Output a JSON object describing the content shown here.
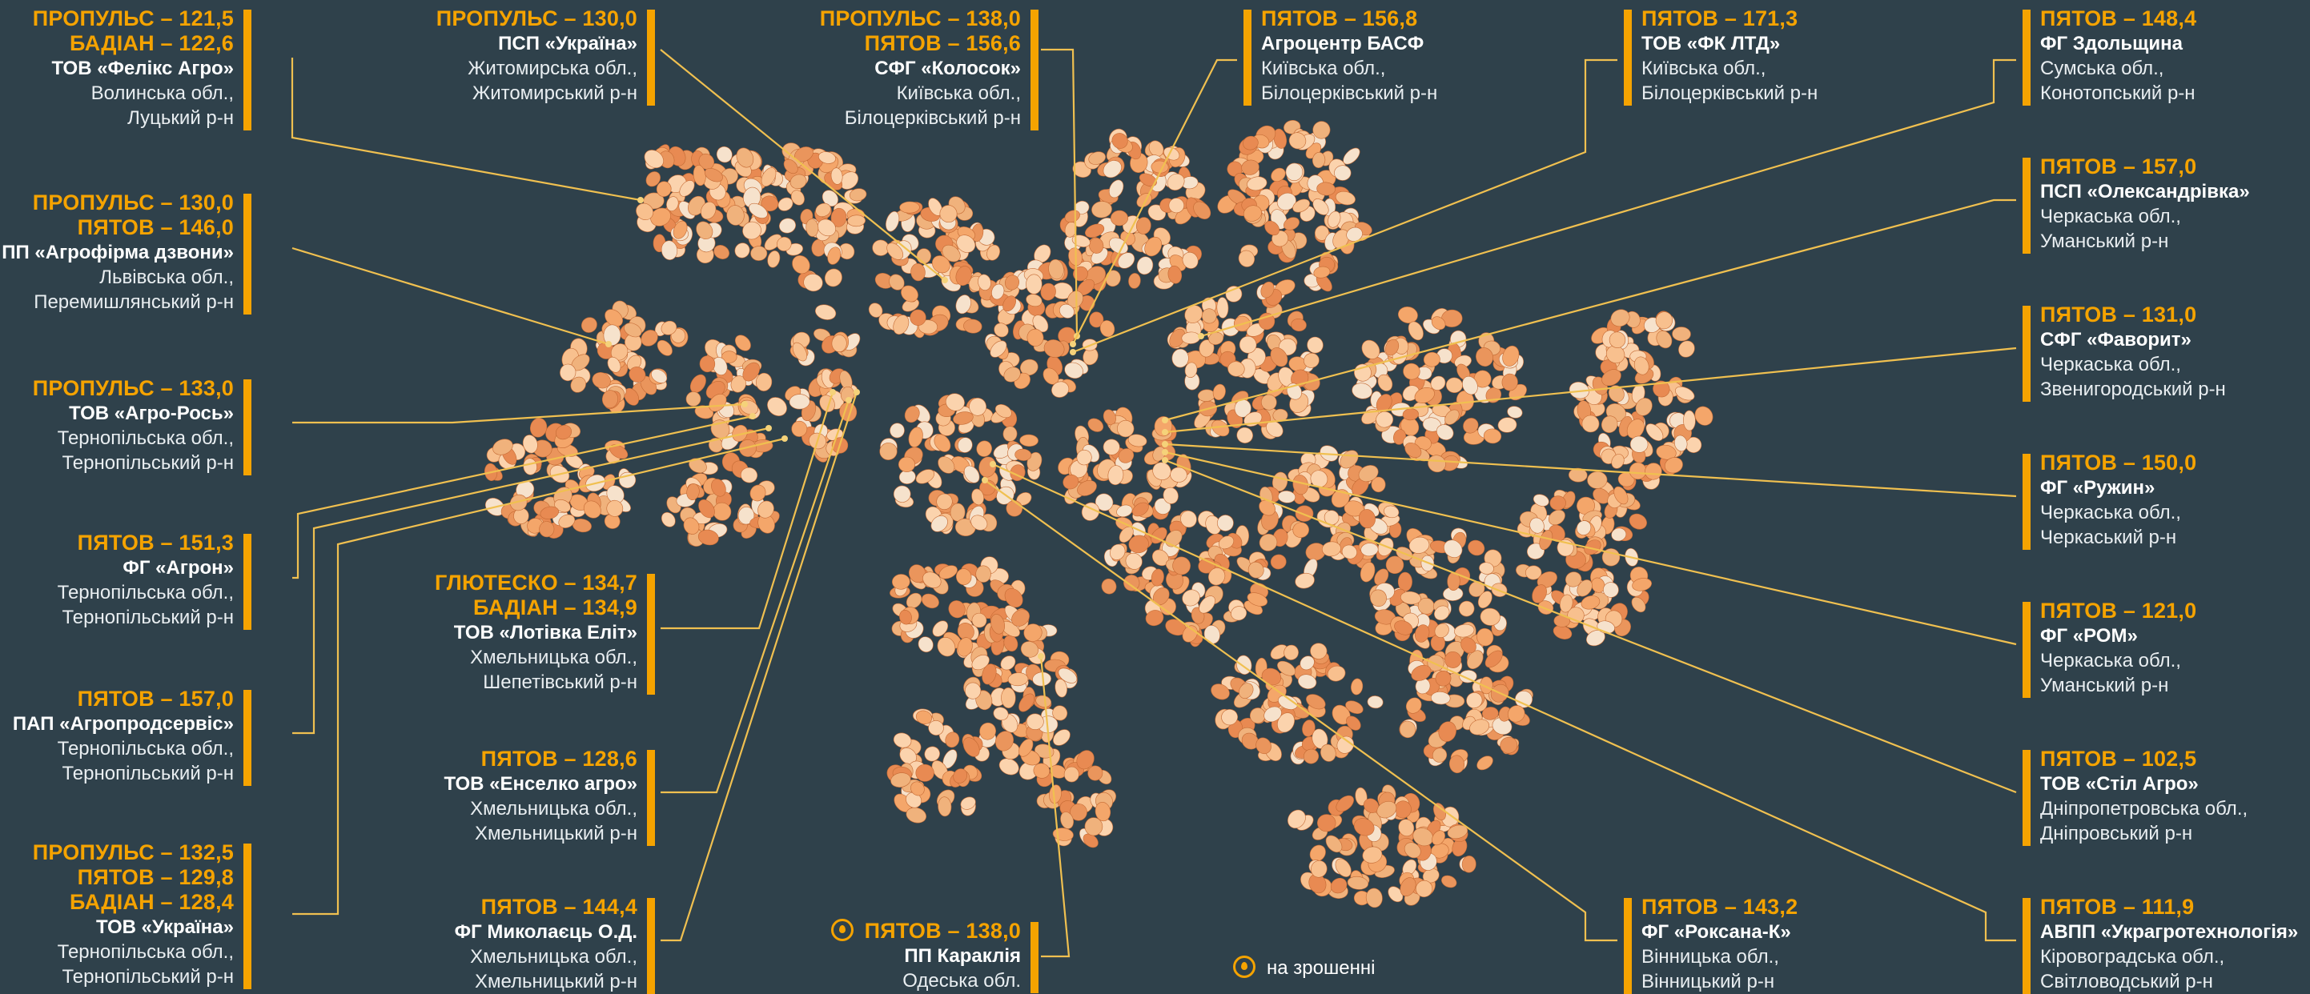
{
  "colors": {
    "background": "#2f414b",
    "accent": "#f5a300",
    "kernel": "#f4a66a",
    "text": "#ffffff"
  },
  "icons": {
    "irrigation": "water-drop-icon"
  },
  "legend": {
    "label": "на зрошенні"
  },
  "cards": [
    {
      "id": "c1",
      "side": "left",
      "yields": [
        "ПРОПУЛЬС – 121,5",
        "БАДІАН – 122,6"
      ],
      "farm": "ТОВ «Фелікс Агро»",
      "lines": [
        "Волинська обл.,",
        "Луцький р-н"
      ]
    },
    {
      "id": "c2",
      "side": "left",
      "yields": [
        "ПРОПУЛЬС – 130,0",
        "ПЯТОВ – 146,0"
      ],
      "farm": "ПП «Агрофірма дзвони»",
      "lines": [
        "Львівська обл.,",
        "Перемишлянський р-н"
      ]
    },
    {
      "id": "c3",
      "side": "left",
      "yields": [
        "ПРОПУЛЬС – 133,0"
      ],
      "farm": "ТОВ «Агро-Рось»",
      "lines": [
        "Тернопільська обл.,",
        "Тернопільський р-н"
      ]
    },
    {
      "id": "c4",
      "side": "left",
      "yields": [
        "ПЯТОВ – 151,3"
      ],
      "farm": "ФГ «Агрон»",
      "lines": [
        "Тернопільська обл.,",
        "Тернопільський р-н"
      ]
    },
    {
      "id": "c5",
      "side": "left",
      "yields": [
        "ПЯТОВ – 157,0"
      ],
      "farm": "ПАП «Агропродсервіс»",
      "lines": [
        "Тернопільська обл.,",
        "Тернопільський р-н"
      ]
    },
    {
      "id": "c6",
      "side": "left",
      "yields": [
        "ПРОПУЛЬС – 132,5",
        "ПЯТОВ – 129,8",
        "БАДІАН – 128,4"
      ],
      "farm": "ТОВ «Україна»",
      "lines": [
        "Тернопільська обл.,",
        "Тернопільський р-н"
      ]
    },
    {
      "id": "c7",
      "side": "left",
      "yields": [
        "ПРОПУЛЬС – 130,0"
      ],
      "farm": "ПСП «Україна»",
      "lines": [
        "Житомирська обл.,",
        "Житомирський р-н"
      ]
    },
    {
      "id": "c8",
      "side": "left",
      "yields": [
        "ГЛЮТЕСКО – 134,7",
        "БАДІАН – 134,9"
      ],
      "farm": "ТОВ «Лотівка Еліт»",
      "lines": [
        "Хмельницька обл.,",
        "Шепетівський р-н"
      ]
    },
    {
      "id": "c9",
      "side": "left",
      "yields": [
        "ПЯТОВ – 128,6"
      ],
      "farm": "ТОВ «Енселко агро»",
      "lines": [
        "Хмельницька обл.,",
        "Хмельницький р-н"
      ]
    },
    {
      "id": "c10",
      "side": "left",
      "yields": [
        "ПЯТОВ – 144,4"
      ],
      "farm": "ФГ Миколаєць О.Д.",
      "lines": [
        "Хмельницька обл.,",
        "Хмельницький р-н"
      ]
    },
    {
      "id": "c11",
      "side": "left",
      "yields": [
        "ПРОПУЛЬС – 138,0",
        "ПЯТОВ – 156,6"
      ],
      "farm": "СФГ «Колосок»",
      "lines": [
        "Київська обл.,",
        "Білоцерківський р-н"
      ]
    },
    {
      "id": "c12",
      "side": "left",
      "irrigated": true,
      "yields": [
        "ПЯТОВ – 138,0"
      ],
      "farm": "ПП Караклія",
      "lines": [
        "Одеська обл."
      ]
    },
    {
      "id": "c13",
      "side": "right",
      "yields": [
        "ПЯТОВ – 156,8"
      ],
      "farm": "Агроцентр БАСФ",
      "lines": [
        "Київська обл.,",
        "Білоцерківський р-н"
      ]
    },
    {
      "id": "c14",
      "side": "right",
      "yields": [
        "ПЯТОВ – 171,3"
      ],
      "farm": "ТОВ «ФК ЛТД»",
      "lines": [
        "Київська обл.,",
        "Білоцерківський р-н"
      ]
    },
    {
      "id": "c15",
      "side": "right",
      "yields": [
        "ПЯТОВ – 143,2"
      ],
      "farm": "ФГ «Роксана-К»",
      "lines": [
        "Вінницька обл.,",
        "Вінницький р-н"
      ]
    },
    {
      "id": "c16",
      "side": "right",
      "yields": [
        "ПЯТОВ – 148,4"
      ],
      "farm": "ФГ Здольщина",
      "lines": [
        "Сумська обл.,",
        "Конотопський р-н"
      ]
    },
    {
      "id": "c17",
      "side": "right",
      "yields": [
        "ПЯТОВ – 157,0"
      ],
      "farm": "ПСП «Олександрівка»",
      "lines": [
        "Черкаська обл.,",
        "Уманський р-н"
      ]
    },
    {
      "id": "c18",
      "side": "right",
      "yields": [
        "ПЯТОВ – 131,0"
      ],
      "farm": "СФГ «Фаворит»",
      "lines": [
        "Черкаська обл.,",
        "Звенигородський р-н"
      ]
    },
    {
      "id": "c19",
      "side": "right",
      "yields": [
        "ПЯТОВ – 150,0"
      ],
      "farm": "ФГ «Ружин»",
      "lines": [
        "Черкаська обл.,",
        "Черкаський р-н"
      ]
    },
    {
      "id": "c20",
      "side": "right",
      "yields": [
        "ПЯТОВ – 121,0"
      ],
      "farm": "ФГ «РОМ»",
      "lines": [
        "Черкаська обл.,",
        "Уманський р-н"
      ]
    },
    {
      "id": "c21",
      "side": "right",
      "yields": [
        "ПЯТОВ – 102,5"
      ],
      "farm": "ТОВ «Стіл Агро»",
      "lines": [
        "Дніпропетровська обл.,",
        "Дніпровський р-н"
      ]
    },
    {
      "id": "c22",
      "side": "right",
      "yields": [
        "ПЯТОВ – 111,9"
      ],
      "farm": "АВПП «Украгротехнологія»",
      "lines": [
        "Кіровоградська обл.,",
        "Світловодський р-н"
      ]
    }
  ]
}
